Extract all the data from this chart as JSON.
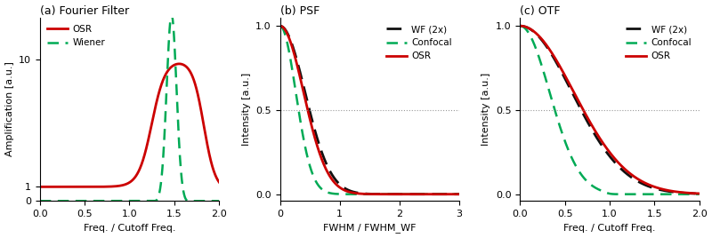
{
  "panel_a": {
    "title": "(a) Fourier Filter",
    "xlabel": "Freq. / Cutoff Freq.",
    "ylabel": "Amplification [a.u.]",
    "xlim": [
      0,
      2
    ],
    "ylim": [
      0,
      13
    ],
    "yticks": [
      0,
      1,
      10
    ],
    "xticks": [
      0,
      0.5,
      1,
      1.5,
      2
    ],
    "osr_color": "#cc0000",
    "wiener_color": "#00aa55",
    "legend": [
      "OSR",
      "Wiener"
    ]
  },
  "panel_b": {
    "title": "(b) PSF",
    "xlabel": "FWHM / FWHM_WF",
    "ylabel": "Intensity [a.u.]",
    "xlim": [
      0,
      3
    ],
    "ylim": [
      -0.04,
      1.05
    ],
    "yticks": [
      0,
      0.5,
      1
    ],
    "xticks": [
      0,
      1,
      2,
      3
    ],
    "osr_color": "#cc0000",
    "confocal_color": "#00aa55",
    "wf_color": "#111111",
    "legend": [
      "OSR",
      "Confocal",
      "WF (2x)"
    ]
  },
  "panel_c": {
    "title": "(c) OTF",
    "xlabel": "Freq. / Cutoff Freq.",
    "ylabel": "Intensity [a.u.]",
    "xlim": [
      0,
      2
    ],
    "ylim": [
      -0.04,
      1.05
    ],
    "yticks": [
      0,
      0.5,
      1
    ],
    "xticks": [
      0,
      0.5,
      1,
      1.5,
      2
    ],
    "osr_color": "#cc0000",
    "confocal_color": "#00aa55",
    "wf_color": "#111111",
    "legend": [
      "OSR",
      "Confocal",
      "WF (2x)"
    ]
  }
}
